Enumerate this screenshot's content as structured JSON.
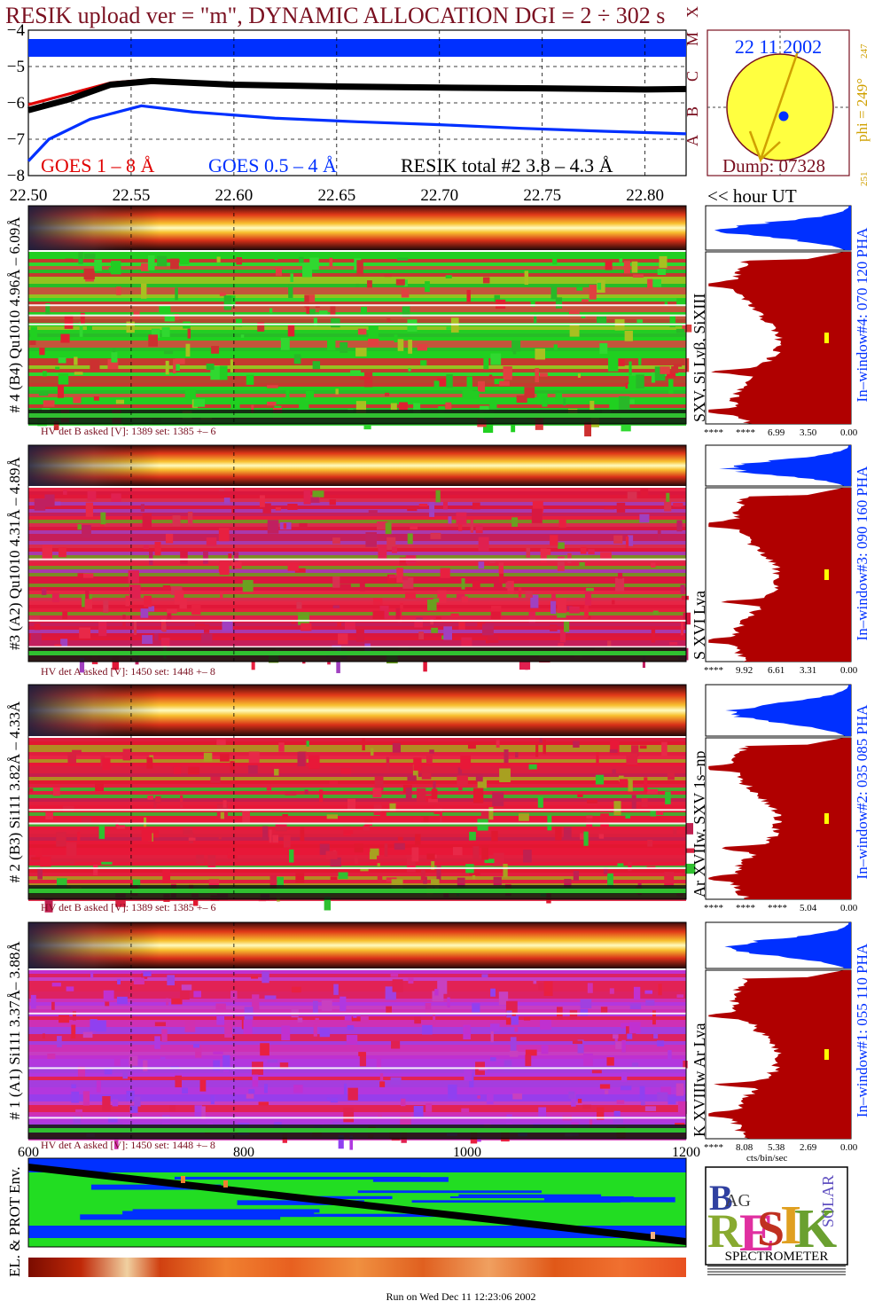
{
  "header": {
    "title": "RESIK upload ver = \"m\", DYNAMIC ALLOCATION  DGI =   2 ÷ 302 s"
  },
  "lightcurve": {
    "legend_goes_long": "GOES 1 – 8 Å",
    "legend_goes_short": "GOES 0.5 – 4 Å",
    "legend_resik": "RESIK total #2  3.8 – 4.3 Å",
    "goes_classes": [
      "A",
      "B",
      "C",
      "M",
      "X"
    ],
    "colors": {
      "goes_long": "#e00000",
      "goes_short": "#0030ff",
      "resik": "#000000",
      "band": "#0030ff"
    }
  },
  "chart_data": {
    "type": "line",
    "xlabel": "<< hour UT",
    "xlim": [
      22.5,
      22.82
    ],
    "ylim": [
      -8,
      -4
    ],
    "x_ticks": [
      "22.50",
      "22.55",
      "22.60",
      "22.65",
      "22.70",
      "22.75",
      "22.80"
    ],
    "y_ticks": [
      "-4",
      "-5",
      "-6",
      "-7",
      "-8"
    ],
    "series": [
      {
        "name": "GOES 1 – 8 Å",
        "x": [
          22.5,
          22.52,
          22.54,
          22.555,
          22.58,
          22.62,
          22.66,
          22.7,
          22.74,
          22.78,
          22.82
        ],
        "y": [
          -6.05,
          -5.75,
          -5.45,
          -5.38,
          -5.45,
          -5.52,
          -5.55,
          -5.56,
          -5.57,
          -5.58,
          -5.6
        ]
      },
      {
        "name": "GOES 0.5 – 4 Å",
        "x": [
          22.5,
          22.51,
          22.53,
          22.555,
          22.58,
          22.62,
          22.66,
          22.7,
          22.74,
          22.78,
          22.82
        ],
        "y": [
          -7.6,
          -7.0,
          -6.45,
          -6.08,
          -6.25,
          -6.42,
          -6.52,
          -6.6,
          -6.7,
          -6.78,
          -6.85
        ]
      },
      {
        "name": "RESIK total #2  3.8 – 4.3 Å",
        "x": [
          22.5,
          22.52,
          22.54,
          22.56,
          22.6,
          22.65,
          22.7,
          22.75,
          22.8,
          22.82
        ],
        "y": [
          -6.2,
          -5.9,
          -5.5,
          -5.4,
          -5.5,
          -5.55,
          -5.58,
          -5.6,
          -5.63,
          -5.62
        ]
      }
    ]
  },
  "sun": {
    "date": "22 11 2002",
    "dump": "Dump: 07328",
    "phi": "phi = 249°",
    "phi_max": "247",
    "phi_min": "251"
  },
  "panels": [
    {
      "left_label": "# 4 (B4) Qu1010 4.96Å – 6.09Å",
      "ion_label": "SXV, Si Lyβ, SiXIII",
      "window_label": "In–window#4:  070 120 PHA",
      "hv": "HV det B asked [V]:  1389 set:  1385 +–    6",
      "spec_ticks": [
        "****",
        "****",
        "6.99",
        "3.50",
        "0.00"
      ]
    },
    {
      "left_label": "#3 (A2) Qu1010  4.31Å – 4.89Å",
      "ion_label": "S XVI Lya",
      "window_label": "In–window#3:  090 160 PHA",
      "hv": "HV det A asked [V]:  1450 set:  1448 +–    8",
      "spec_ticks": [
        "****",
        "9.92",
        "6.61",
        "3.31",
        "0.00"
      ]
    },
    {
      "left_label": "# 2 (B3) Si111  3.82Å – 4.33Å",
      "ion_label": "Ar XVIIw,  SXV 1s–np",
      "window_label": "In–window#2:  035 085 PHA",
      "hv": "HV det B asked [V]:  1389 set:  1385 +–    6",
      "spec_ticks": [
        "****",
        "****",
        "****",
        "5.04",
        "0.00"
      ]
    },
    {
      "left_label": "# 1 (A1) Si111  3.37Å– 3.88Å",
      "ion_label": "K XVIIIw  Ar Lya",
      "window_label": "In–window#1:  055 110 PHA",
      "hv": "HV det A asked [V]:  1450 set:  1448 +–    8",
      "spec_ticks": [
        "****",
        "8.08",
        "5.38",
        "2.69",
        "0.00"
      ]
    }
  ],
  "spec_xlabel": "cts/bin/sec",
  "env": {
    "label": "EL. & PROT Env.",
    "x_ticks": [
      "600",
      "800",
      "1000",
      "1200"
    ]
  },
  "logo": {
    "text": "RESIK",
    "bottom": "SPECTROMETER"
  },
  "footer": {
    "run_text": "Run on Wed Dec 11 12:23:06 2002"
  }
}
